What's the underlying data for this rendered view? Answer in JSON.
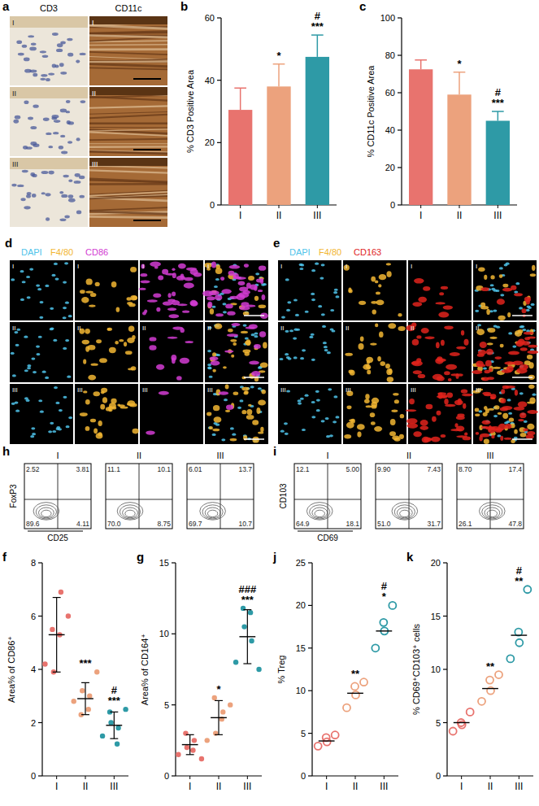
{
  "images": [
    {
      "panel": "a",
      "columns": [
        "CD3",
        "CD11c"
      ],
      "rows": [
        "I",
        "II",
        "III"
      ]
    },
    {
      "panel": "d",
      "channels": [
        {
          "name": "DAPI",
          "color": "#4fc3ea"
        },
        {
          "name": "F4/80",
          "color": "#f2b632"
        },
        {
          "name": "CD86",
          "color": "#d23cd2"
        }
      ],
      "rows": [
        "I",
        "II",
        "III"
      ]
    },
    {
      "panel": "e",
      "channels": [
        {
          "name": "DAPI",
          "color": "#4fc3ea"
        },
        {
          "name": "F4/80",
          "color": "#f2b632"
        },
        {
          "name": "CD163",
          "color": "#e0231c"
        }
      ],
      "rows": [
        "I",
        "II",
        "III"
      ]
    }
  ],
  "chart_data": [
    {
      "panel": "b",
      "type": "bar",
      "y_label": "% CD3 Positive Area",
      "categories": [
        "I",
        "II",
        "III"
      ],
      "values": [
        30.5,
        38,
        47.5
      ],
      "errors": [
        7,
        7.2,
        7
      ],
      "colors": [
        "#e8736e",
        "#eca27d",
        "#2e9aa6"
      ],
      "ylim": [
        0,
        60
      ],
      "yticks": [
        0,
        20,
        40,
        60
      ],
      "annotations": [
        {
          "category": "II",
          "text": [
            "*"
          ]
        },
        {
          "category": "III",
          "text": [
            "#",
            "***"
          ]
        }
      ]
    },
    {
      "panel": "c",
      "type": "bar",
      "y_label": "% CD11c Positive Area",
      "categories": [
        "I",
        "II",
        "III"
      ],
      "values": [
        72.5,
        59,
        45
      ],
      "errors": [
        5,
        12,
        5
      ],
      "colors": [
        "#e8736e",
        "#eca27d",
        "#2e9aa6"
      ],
      "ylim": [
        0,
        100
      ],
      "yticks": [
        0,
        20,
        40,
        60,
        80,
        100
      ],
      "annotations": [
        {
          "category": "II",
          "text": [
            "*"
          ]
        },
        {
          "category": "III",
          "text": [
            "#",
            "***"
          ]
        }
      ]
    },
    {
      "panel": "h",
      "type": "flow",
      "x_label": "CD25",
      "y_label": "FoxP3",
      "categories": [
        "I",
        "II",
        "III"
      ],
      "tick_labels": false,
      "quadrants": [
        [
          2.52,
          3.81,
          89.6,
          4.11
        ],
        [
          11.1,
          10.1,
          70.0,
          8.75
        ],
        [
          6.01,
          13.7,
          69.7,
          10.7
        ]
      ],
      "value_labels": [
        [
          "2.52",
          "3.81",
          "89.6",
          "4.11"
        ],
        [
          "11.1",
          "10.1",
          "70.0",
          "8.75"
        ],
        [
          "6.01",
          "13.7",
          "69.7",
          "10.7"
        ]
      ]
    },
    {
      "panel": "i",
      "type": "flow",
      "x_label": "CD69",
      "y_label": "CD103",
      "categories": [
        "I",
        "II",
        "III"
      ],
      "tick_labels": false,
      "quadrants": [
        [
          12.1,
          5.0,
          64.9,
          18.1
        ],
        [
          9.9,
          7.43,
          51.0,
          31.7
        ],
        [
          8.7,
          17.4,
          26.1,
          47.8
        ]
      ],
      "value_labels": [
        [
          "12.1",
          "5.00",
          "64.9",
          "18.1"
        ],
        [
          "9.90",
          "7.43",
          "51.0",
          "31.7"
        ],
        [
          "8.70",
          "17.4",
          "26.1",
          "47.8"
        ]
      ]
    },
    {
      "panel": "f",
      "type": "dot",
      "y_label": "Area% of CD86⁺",
      "categories": [
        "I",
        "II",
        "III"
      ],
      "points": [
        [
          4.2,
          3.9,
          5.5,
          6.9,
          5.3,
          6.0
        ],
        [
          2.8,
          3.2,
          2.3,
          3.0,
          2.5,
          3.9
        ],
        [
          1.5,
          2.0,
          2.4,
          1.8,
          1.2,
          2.5
        ]
      ],
      "values": [
        5.3,
        2.9,
        1.9
      ],
      "errors": [
        1.4,
        0.6,
        0.5
      ],
      "colors": [
        "#e8736e",
        "#eca27d",
        "#2e9aa6"
      ],
      "marker": "filled",
      "ylim": [
        0,
        8
      ],
      "yticks": [
        0,
        2,
        4,
        6,
        8
      ],
      "annotations": [
        {
          "category": "II",
          "text": [
            "***"
          ]
        },
        {
          "category": "III",
          "text": [
            "#",
            "***"
          ]
        }
      ]
    },
    {
      "panel": "g",
      "type": "dot",
      "y_label": "Area% of CD164⁺",
      "categories": [
        "I",
        "II",
        "III"
      ],
      "points": [
        [
          1.5,
          2.0,
          3.0,
          2.5,
          1.8,
          1.2
        ],
        [
          2.5,
          3.0,
          5.5,
          4.5,
          4.0,
          5.0
        ],
        [
          8.0,
          10.5,
          11.8,
          9.5,
          11.5,
          7.5
        ]
      ],
      "values": [
        2.2,
        4.1,
        9.8
      ],
      "errors": [
        0.7,
        1.2,
        1.9
      ],
      "colors": [
        "#e8736e",
        "#eca27d",
        "#2e9aa6"
      ],
      "marker": "filled",
      "ylim": [
        0,
        15
      ],
      "yticks": [
        0,
        5,
        10,
        15
      ],
      "annotations": [
        {
          "category": "II",
          "text": [
            "*"
          ]
        },
        {
          "category": "III",
          "text": [
            "###",
            "***"
          ]
        }
      ]
    },
    {
      "panel": "j",
      "type": "dot",
      "y_label": "% Treg",
      "categories": [
        "I",
        "II",
        "III"
      ],
      "points": [
        [
          3.5,
          4.0,
          4.5,
          4.8
        ],
        [
          8.0,
          9.5,
          10.5,
          11.0
        ],
        [
          15.0,
          17.0,
          18.0,
          20.0
        ]
      ],
      "values": [
        4.1,
        9.7,
        17.0
      ],
      "colors": [
        "#e8736e",
        "#eca27d",
        "#2e9aa6"
      ],
      "marker": "open",
      "ylim": [
        0,
        25
      ],
      "yticks": [
        0,
        5,
        10,
        15,
        20,
        25
      ],
      "annotations": [
        {
          "category": "II",
          "text": [
            "**"
          ]
        },
        {
          "category": "III",
          "text": [
            "#",
            "*"
          ]
        }
      ]
    },
    {
      "panel": "k",
      "type": "dot",
      "y_label": "% CD69⁺CD103⁺ cells",
      "categories": [
        "I",
        "II",
        "III"
      ],
      "points": [
        [
          4.2,
          4.8,
          5.0,
          6.0
        ],
        [
          7.0,
          8.0,
          9.0,
          9.5
        ],
        [
          11.0,
          12.5,
          13.5,
          17.5
        ]
      ],
      "values": [
        5.0,
        8.2,
        13.2
      ],
      "colors": [
        "#e8736e",
        "#eca27d",
        "#2e9aa6"
      ],
      "marker": "open",
      "ylim": [
        0,
        20
      ],
      "yticks": [
        0,
        5,
        10,
        15,
        20
      ],
      "annotations": [
        {
          "category": "II",
          "text": [
            "**"
          ]
        },
        {
          "category": "III",
          "text": [
            "#",
            "**"
          ]
        }
      ]
    }
  ]
}
